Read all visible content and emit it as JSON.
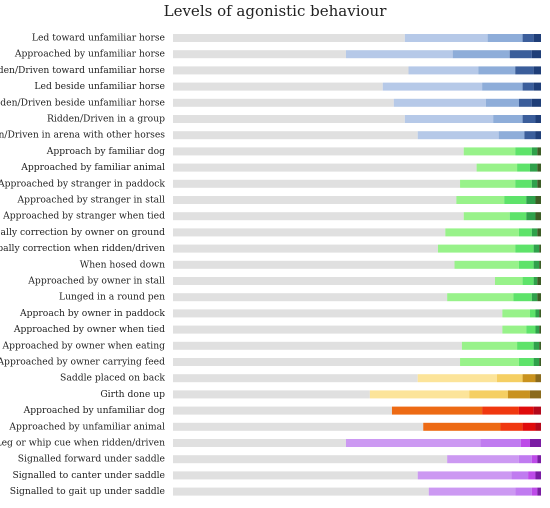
{
  "chart_data": {
    "type": "bar",
    "stacked": true,
    "orientation": "horizontal",
    "title": "Levels of agonistic behaviour",
    "xlabel": "",
    "ylabel": "",
    "xlim": [
      0,
      100
    ],
    "grid": false,
    "legend": "none",
    "level_colors": {
      "blue": [
        "#e0e0e0",
        "#b6c9e8",
        "#8eadd9",
        "#3b5e9b",
        "#1f3e78"
      ],
      "green": [
        "#e0e0e0",
        "#98f28a",
        "#5ee36a",
        "#2fa14b",
        "#3d5c25"
      ],
      "orange": [
        "#e0e0e0",
        "#fce49a",
        "#f5cf63",
        "#c9921e",
        "#8a6a1c"
      ],
      "red": [
        "#e0e0e0",
        "#ed6a14",
        "#f0380f",
        "#e00b0b",
        "#b3081b"
      ],
      "purple": [
        "#e0e0e0",
        "#cc99f2",
        "#c07bf0",
        "#bd4be8",
        "#7a1ca3"
      ]
    },
    "categories": [
      "Led toward unfamiliar horse",
      "Approached by unfamiliar horse",
      "Ridden/Driven toward unfamiliar horse",
      "Led beside unfamiliar horse",
      "Ridden/Driven beside unfamiliar horse",
      "Ridden/Driven in a group",
      "Ridden/Driven in arena with other horses",
      "Approach by familiar dog",
      "Approached by familiar animal",
      "Approached by stranger in paddock",
      "Approached by stranger in stall",
      "Approached by stranger when tied",
      "Verbally correction by owner on ground",
      "Verbally correction when ridden/driven",
      "When hosed down",
      "Approached by owner in stall",
      "Lunged in a round pen",
      "Approach by owner in paddock",
      "Approached by owner when tied",
      "Approached by owner when eating",
      "Approached by owner carrying feed",
      "Saddle placed on back",
      "Girth done up",
      "Approached by unfamiliar dog",
      "Approached by unfamiliar animal",
      "Leg or whip cue when ridden/driven",
      "Signalled forward under saddle",
      "Signalled to canter under saddle",
      "Signalled to gait up under saddle"
    ],
    "bars": [
      {
        "palette": "blue",
        "values": [
          63.0,
          22.5,
          9.5,
          3.0,
          2.0
        ]
      },
      {
        "palette": "blue",
        "values": [
          47.0,
          29.0,
          15.5,
          6.0,
          2.5
        ]
      },
      {
        "palette": "blue",
        "values": [
          64.0,
          19.0,
          10.0,
          5.0,
          2.0
        ]
      },
      {
        "palette": "blue",
        "values": [
          57.0,
          27.0,
          11.0,
          3.0,
          2.0
        ]
      },
      {
        "palette": "blue",
        "values": [
          60.0,
          25.0,
          9.0,
          3.5,
          2.5
        ]
      },
      {
        "palette": "blue",
        "values": [
          63.0,
          24.0,
          8.0,
          3.5,
          1.5
        ]
      },
      {
        "palette": "blue",
        "values": [
          66.5,
          22.0,
          7.0,
          3.0,
          1.5
        ]
      },
      {
        "palette": "green",
        "values": [
          79.0,
          14.0,
          4.5,
          1.5,
          1.0
        ]
      },
      {
        "palette": "green",
        "values": [
          82.5,
          11.0,
          3.5,
          2.0,
          1.0
        ]
      },
      {
        "palette": "green",
        "values": [
          78.0,
          15.0,
          4.5,
          1.5,
          1.0
        ]
      },
      {
        "palette": "green",
        "values": [
          77.0,
          13.0,
          6.0,
          2.5,
          1.5
        ]
      },
      {
        "palette": "green",
        "values": [
          79.0,
          12.5,
          4.5,
          2.5,
          1.5
        ]
      },
      {
        "palette": "green",
        "values": [
          74.0,
          20.0,
          3.5,
          1.5,
          1.0
        ]
      },
      {
        "palette": "green",
        "values": [
          72.0,
          21.0,
          5.0,
          1.5,
          0.5
        ]
      },
      {
        "palette": "green",
        "values": [
          76.5,
          17.5,
          4.0,
          1.5,
          0.5
        ]
      },
      {
        "palette": "green",
        "values": [
          87.5,
          7.5,
          3.0,
          1.0,
          1.0
        ]
      },
      {
        "palette": "green",
        "values": [
          74.5,
          18.0,
          5.0,
          1.5,
          1.0
        ]
      },
      {
        "palette": "green",
        "values": [
          89.5,
          7.5,
          1.5,
          1.0,
          0.5
        ]
      },
      {
        "palette": "green",
        "values": [
          89.5,
          6.5,
          2.5,
          1.0,
          0.5
        ]
      },
      {
        "palette": "green",
        "values": [
          78.5,
          15.0,
          4.5,
          1.5,
          0.5
        ]
      },
      {
        "palette": "green",
        "values": [
          78.0,
          16.0,
          4.0,
          1.5,
          0.5
        ]
      },
      {
        "palette": "orange",
        "values": [
          66.5,
          21.5,
          7.0,
          3.5,
          1.5
        ]
      },
      {
        "palette": "orange",
        "values": [
          53.5,
          27.0,
          10.5,
          6.0,
          3.0
        ]
      },
      {
        "palette": "red",
        "values": [
          59.5,
          24.5,
          10.0,
          4.0,
          2.0
        ]
      },
      {
        "palette": "red",
        "values": [
          68.0,
          21.0,
          6.0,
          3.5,
          1.5
        ]
      },
      {
        "palette": "purple",
        "values": [
          47.0,
          36.5,
          11.0,
          2.5,
          3.0
        ]
      },
      {
        "palette": "purple",
        "values": [
          74.5,
          19.5,
          3.5,
          1.5,
          1.0
        ]
      },
      {
        "palette": "purple",
        "values": [
          66.5,
          25.5,
          4.5,
          2.0,
          1.5
        ]
      },
      {
        "palette": "purple",
        "values": [
          69.5,
          23.5,
          4.5,
          1.5,
          1.0
        ]
      }
    ]
  }
}
